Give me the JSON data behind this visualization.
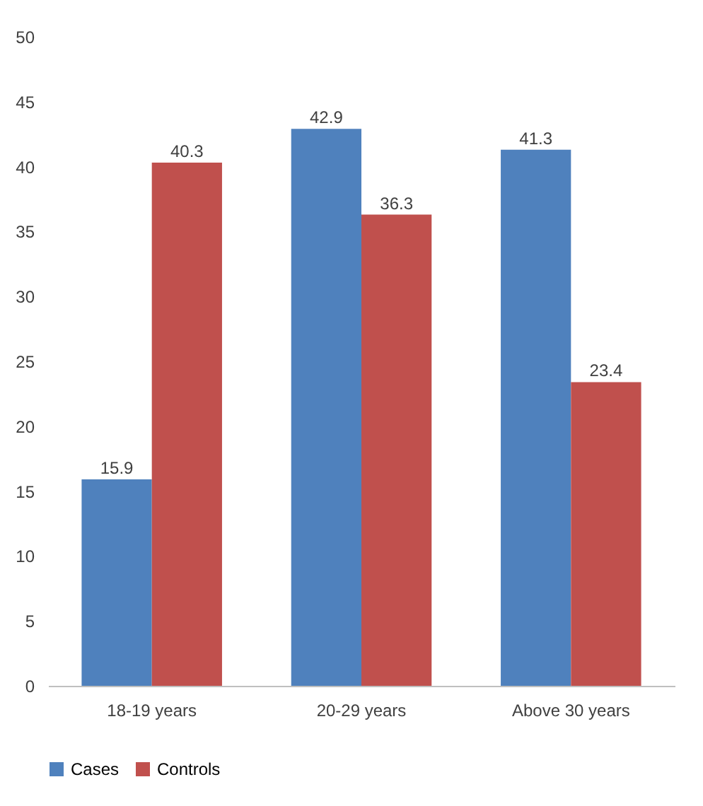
{
  "chart_data": {
    "type": "bar",
    "categories": [
      "18-19 years",
      "20-29 years",
      "Above 30 years"
    ],
    "series": [
      {
        "name": "Cases",
        "color": "#4f81bd",
        "values": [
          15.9,
          42.9,
          41.3
        ]
      },
      {
        "name": "Controls",
        "color": "#c0504d",
        "values": [
          40.3,
          36.3,
          23.4
        ]
      }
    ],
    "ylim": [
      0,
      50
    ],
    "yticks": [
      0,
      5,
      10,
      15,
      20,
      25,
      30,
      35,
      40,
      45,
      50
    ],
    "grid": false,
    "legend": "bottom",
    "data_labels": true
  }
}
